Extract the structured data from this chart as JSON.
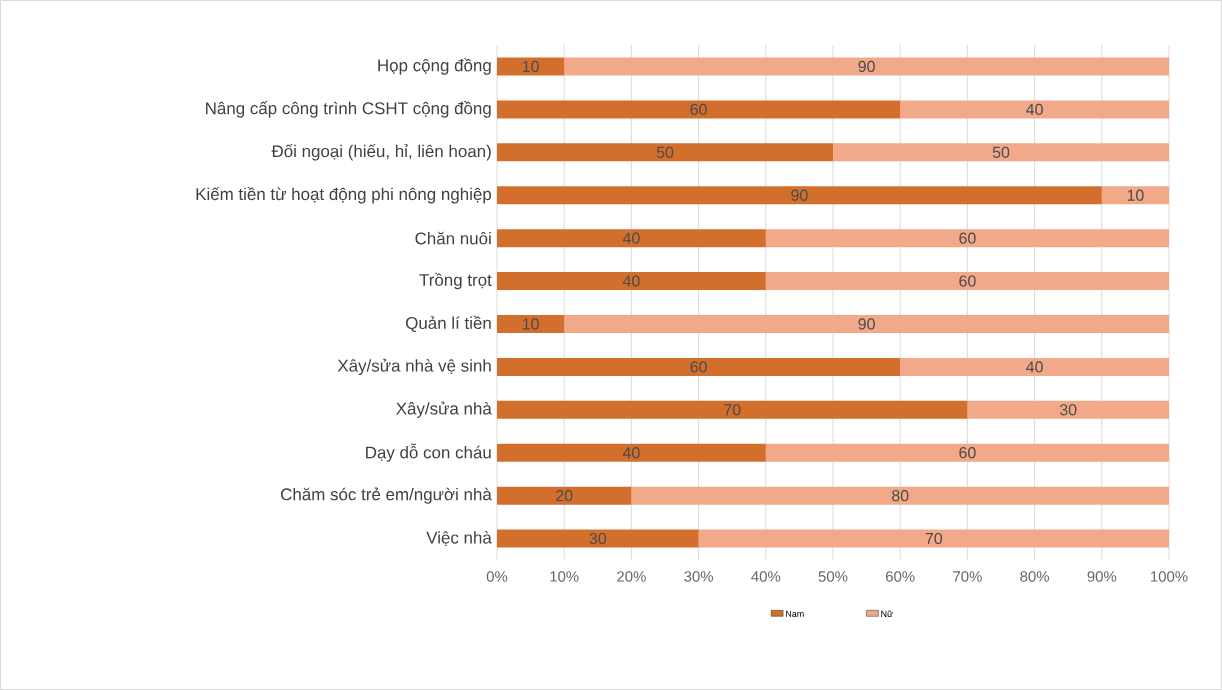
{
  "chart_data": {
    "type": "bar",
    "orientation": "horizontal",
    "stacked": true,
    "categories": [
      "Họp cộng đồng",
      "Nâng cấp công trình CSHT cộng đồng",
      "Đối ngoại (hiếu, hỉ, liên hoan)",
      "Kiếm tiền từ hoạt động phi nông nghiệp",
      "Chăn nuôi",
      "Trồng trọt",
      "Quản lí tiền",
      "Xây/sửa nhà vệ sinh",
      "Xây/sửa nhà",
      "Dạy dỗ con cháu",
      "Chăm sóc trẻ em/người nhà",
      "Việc nhà"
    ],
    "series": [
      {
        "name": "Nam",
        "color": "#d36f2c",
        "values": [
          10,
          60,
          50,
          90,
          40,
          40,
          10,
          60,
          70,
          40,
          20,
          30
        ]
      },
      {
        "name": "Nữ",
        "color": "#f2a98a",
        "values": [
          90,
          40,
          50,
          10,
          60,
          60,
          90,
          40,
          30,
          60,
          80,
          70
        ]
      }
    ],
    "xlim": [
      0,
      100
    ],
    "xticks": [
      {
        "value": 0,
        "label": "0%"
      },
      {
        "value": 10,
        "label": "10%"
      },
      {
        "value": 20,
        "label": "20%"
      },
      {
        "value": 30,
        "label": "30%"
      },
      {
        "value": 40,
        "label": "40%"
      },
      {
        "value": 50,
        "label": "50%"
      },
      {
        "value": 60,
        "label": "60%"
      },
      {
        "value": 70,
        "label": "70%"
      },
      {
        "value": 80,
        "label": "80%"
      },
      {
        "value": 90,
        "label": "90%"
      },
      {
        "value": 100,
        "label": "100%"
      }
    ],
    "grid": "x",
    "data_labels": true,
    "legend": "bottom"
  }
}
